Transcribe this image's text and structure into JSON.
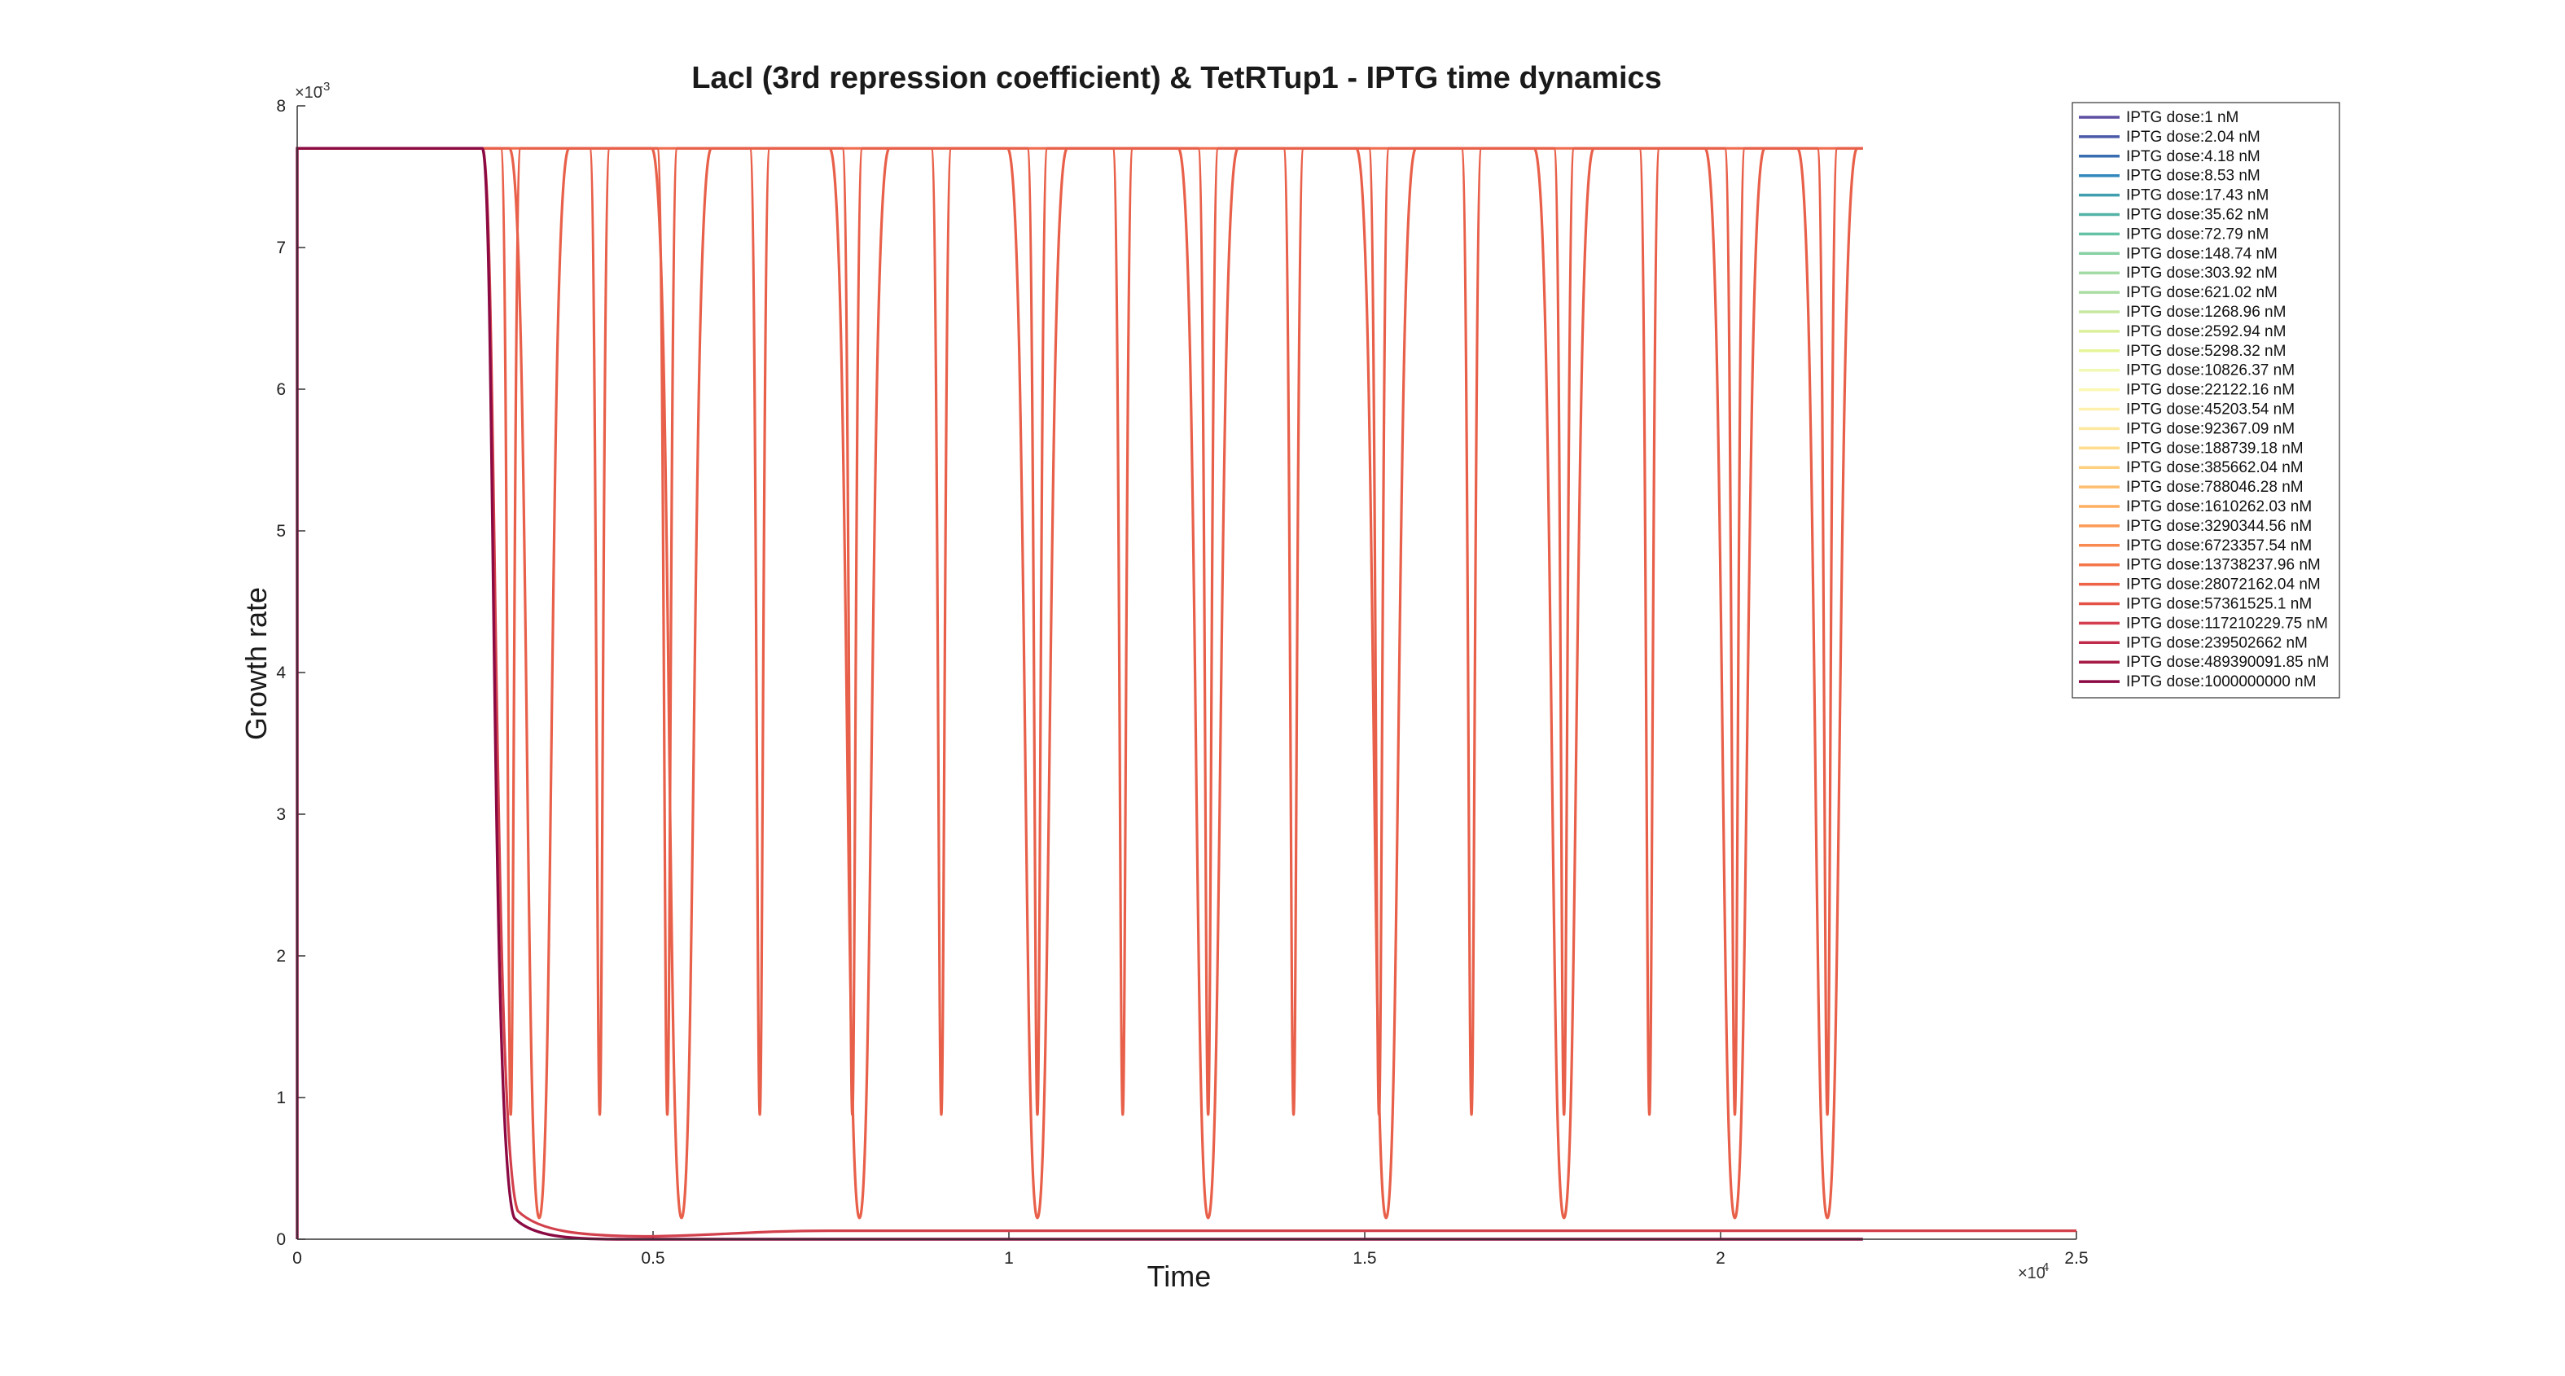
{
  "chart_data": {
    "type": "line",
    "title": "LacI (3rd repression coefficient) & TetRTup1 - IPTG time dynamics",
    "xlabel": "Time",
    "ylabel": "Growth rate",
    "x_multiplier": "×10",
    "x_multiplier_exp": "4",
    "y_multiplier": "×10",
    "y_multiplier_exp": "-3",
    "xlim": [
      0,
      25000
    ],
    "ylim": [
      0,
      0.008
    ],
    "xticks": [
      0,
      5000,
      10000,
      15000,
      20000,
      25000
    ],
    "xtick_labels": [
      "0",
      "0.5",
      "1",
      "1.5",
      "2",
      "2.5"
    ],
    "yticks": [
      0,
      0.001,
      0.002,
      0.003,
      0.004,
      0.005,
      0.006,
      0.007,
      0.008
    ],
    "ytick_labels": [
      "0",
      "1",
      "2",
      "3",
      "4",
      "5",
      "6",
      "7",
      "8"
    ],
    "grid": false,
    "legend_placement": "top-right outside",
    "series": [
      {
        "name": "IPTG dose:1 nM",
        "color": "#5e4fa2"
      },
      {
        "name": "IPTG dose:2.04 nM",
        "color": "#4a5aa8"
      },
      {
        "name": "IPTG dose:4.18 nM",
        "color": "#3a6cb0"
      },
      {
        "name": "IPTG dose:8.53 nM",
        "color": "#3288bd"
      },
      {
        "name": "IPTG dose:17.43 nM",
        "color": "#3f9fae"
      },
      {
        "name": "IPTG dose:35.62 nM",
        "color": "#55b2a6"
      },
      {
        "name": "IPTG dose:72.79 nM",
        "color": "#66c2a5"
      },
      {
        "name": "IPTG dose:148.74 nM",
        "color": "#89d0a4"
      },
      {
        "name": "IPTG dose:303.92 nM",
        "color": "#a3dba4"
      },
      {
        "name": "IPTG dose:621.02 nM",
        "color": "#abdda4"
      },
      {
        "name": "IPTG dose:1268.96 nM",
        "color": "#c7e8a0"
      },
      {
        "name": "IPTG dose:2592.94 nM",
        "color": "#dcf09c"
      },
      {
        "name": "IPTG dose:5298.32 nM",
        "color": "#e6f598"
      },
      {
        "name": "IPTG dose:10826.37 nM",
        "color": "#f2f9b4"
      },
      {
        "name": "IPTG dose:22122.16 nM",
        "color": "#fbf8b3"
      },
      {
        "name": "IPTG dose:45203.54 nM",
        "color": "#fff1ad"
      },
      {
        "name": "IPTG dose:92367.09 nM",
        "color": "#fee8a0"
      },
      {
        "name": "IPTG dose:188739.18 nM",
        "color": "#fedd8e"
      },
      {
        "name": "IPTG dose:385662.04 nM",
        "color": "#fecf7c"
      },
      {
        "name": "IPTG dose:788046.28 nM",
        "color": "#fdbf6f"
      },
      {
        "name": "IPTG dose:1610262.03 nM",
        "color": "#fdae61"
      },
      {
        "name": "IPTG dose:3290344.56 nM",
        "color": "#fb9a58"
      },
      {
        "name": "IPTG dose:6723357.54 nM",
        "color": "#f88950"
      },
      {
        "name": "IPTG dose:13738237.96 nM",
        "color": "#f4764b"
      },
      {
        "name": "IPTG dose:28072162.04 nM",
        "color": "#ee6348"
      },
      {
        "name": "IPTG dose:57361525.1 nM",
        "color": "#e45247"
      },
      {
        "name": "IPTG dose:117210229.75 nM",
        "color": "#d53e4f"
      },
      {
        "name": "IPTG dose:239502662 nM",
        "color": "#c02a4a"
      },
      {
        "name": "IPTG dose:489390091.85 nM",
        "color": "#a61a46"
      },
      {
        "name": "IPTG dose:1000000000 nM",
        "color": "#8b0a43"
      }
    ],
    "visible_traces": [
      {
        "label": "steady high",
        "color": "#f06c4f",
        "plateau": 0.0077,
        "x_end": 22000
      },
      {
        "label": "oscillation (shallow troughs)",
        "color": "#e8604a",
        "plateau": 0.0077,
        "trough": 0.00088,
        "trough_x": [
          3000,
          4250,
          5200,
          6500,
          7800,
          9050,
          10400,
          11600,
          12800,
          14000,
          15200,
          16500,
          17800,
          19000,
          20200,
          21500
        ]
      },
      {
        "label": "oscillation (deep troughs)",
        "color": "#e8604a",
        "plateau": 0.0077,
        "trough": 0.00015,
        "trough_x": [
          3400,
          5400,
          7900,
          10400,
          12800,
          15300,
          17800,
          20200,
          21500
        ]
      },
      {
        "label": "collapse, slight recovery",
        "color": "#d2404c",
        "start": 0.0077,
        "drop_x": 2600,
        "floor": 5e-05,
        "end": 6e-05
      },
      {
        "label": "collapse to zero",
        "color": "#8b0a43",
        "start": 0.0077,
        "drop_x": 2600,
        "floor": 0.0
      }
    ]
  }
}
